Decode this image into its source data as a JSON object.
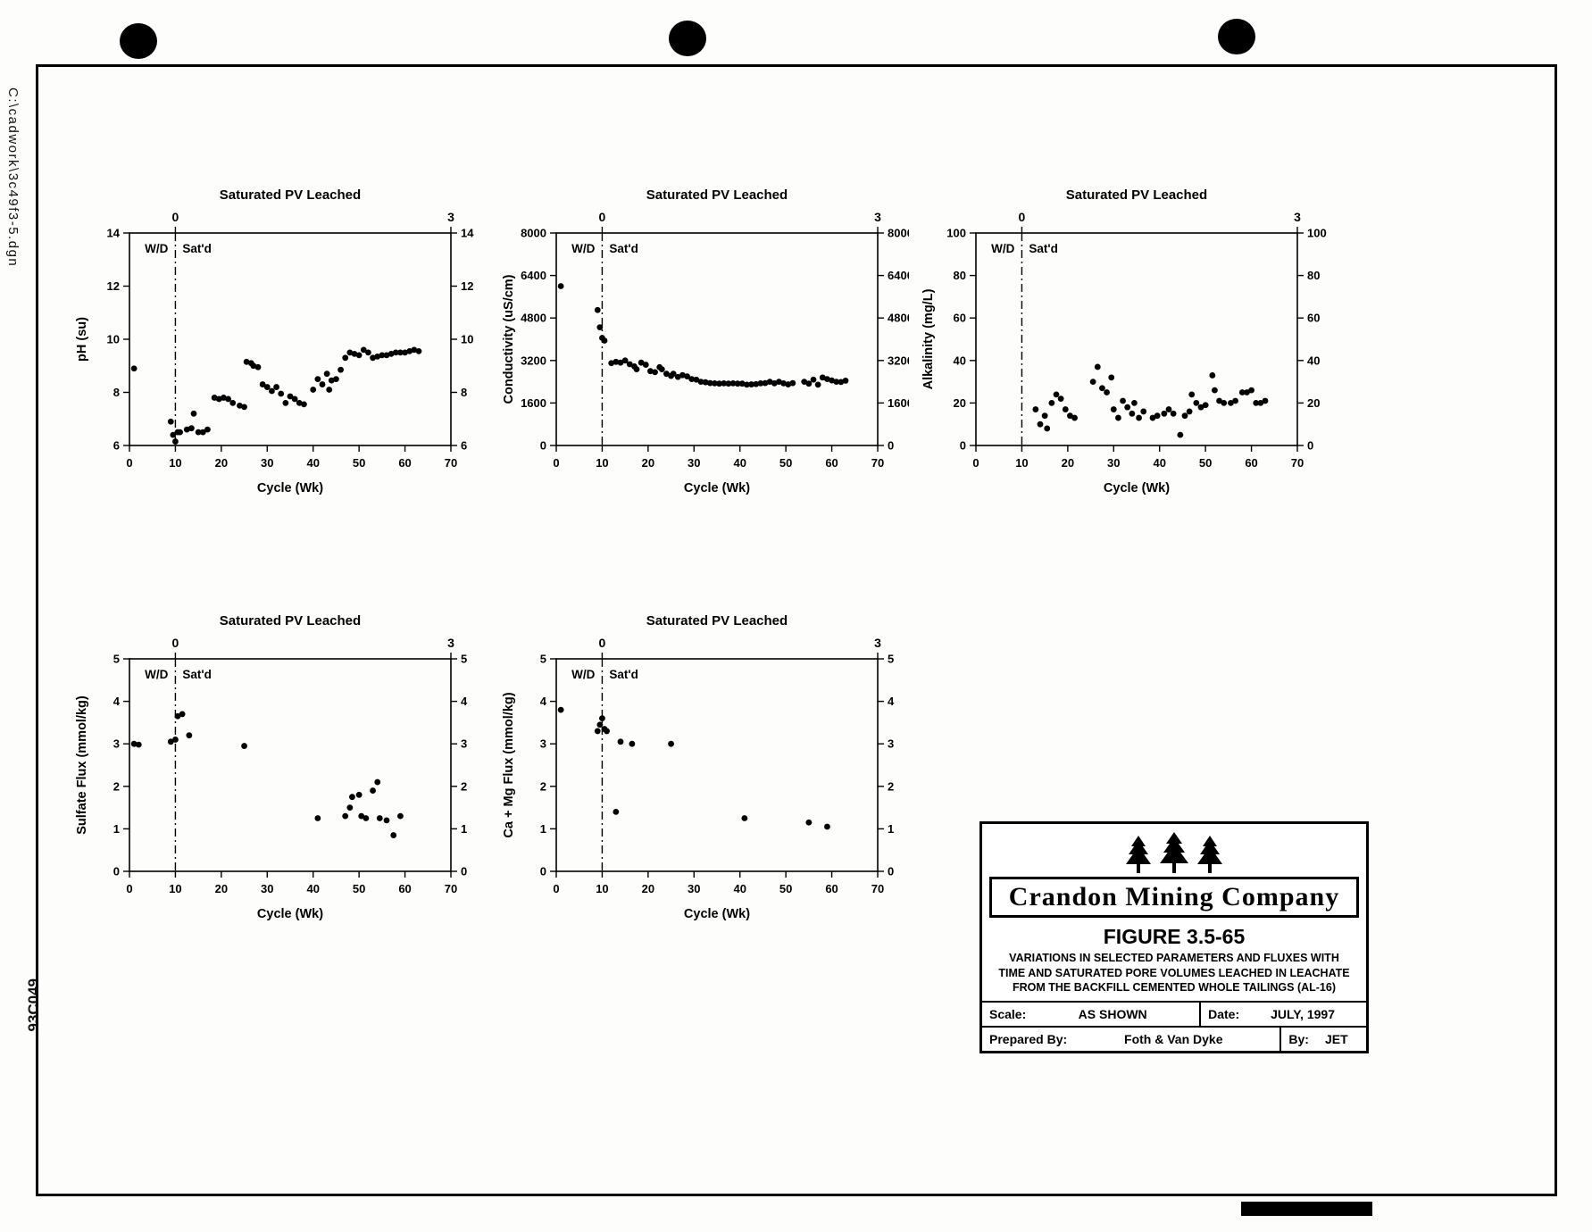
{
  "page": {
    "file_path_label": "C:\\cadwork\\3c49f3-5.dgn",
    "doc_number": "93C049"
  },
  "title_block": {
    "company": "Crandon Mining Company",
    "figure": "FIGURE 3.5-65",
    "caption_lines": [
      "VARIATIONS IN SELECTED PARAMETERS AND FLUXES WITH",
      "TIME AND SATURATED PORE VOLUMES LEACHED IN LEACHATE",
      "FROM THE BACKFILL CEMENTED WHOLE TAILINGS (AL-16)"
    ],
    "scale_label": "Scale:",
    "scale_value": "AS SHOWN",
    "date_label": "Date:",
    "date_value": "JULY, 1997",
    "prepared_label": "Prepared By:",
    "prepared_value": "Foth & Van Dyke",
    "by_label": "By:",
    "by_value": "JET"
  },
  "chart_data": [
    {
      "type": "scatter",
      "title": "Saturated PV Leached",
      "xlabel": "Cycle (Wk)",
      "ylabel": "pH (su)",
      "xlim": [
        0,
        70
      ],
      "ylim": [
        6,
        14
      ],
      "xticks": [
        0,
        10,
        20,
        30,
        40,
        50,
        60,
        70
      ],
      "yticks": [
        6,
        8,
        10,
        12,
        14
      ],
      "top_axis": {
        "ticks": [
          "0",
          "3"
        ],
        "tick_x": [
          10,
          70
        ]
      },
      "divider_x": 10,
      "region_labels": [
        "W/D",
        "Sat'd"
      ],
      "points": [
        [
          1,
          8.9
        ],
        [
          9,
          6.9
        ],
        [
          9.5,
          6.4
        ],
        [
          10,
          6.15
        ],
        [
          10.5,
          6.5
        ],
        [
          11,
          6.5
        ],
        [
          12.5,
          6.6
        ],
        [
          13.5,
          6.65
        ],
        [
          14,
          7.2
        ],
        [
          15,
          6.5
        ],
        [
          16,
          6.5
        ],
        [
          17,
          6.6
        ],
        [
          18.5,
          7.8
        ],
        [
          19.5,
          7.75
        ],
        [
          20.5,
          7.8
        ],
        [
          21.5,
          7.75
        ],
        [
          22.5,
          7.6
        ],
        [
          24,
          7.5
        ],
        [
          25,
          7.45
        ],
        [
          25.5,
          9.15
        ],
        [
          26.5,
          9.1
        ],
        [
          27,
          9.0
        ],
        [
          28,
          8.95
        ],
        [
          29,
          8.3
        ],
        [
          30,
          8.2
        ],
        [
          31,
          8.05
        ],
        [
          32,
          8.2
        ],
        [
          33,
          7.95
        ],
        [
          34,
          7.6
        ],
        [
          35,
          7.85
        ],
        [
          36,
          7.75
        ],
        [
          37,
          7.6
        ],
        [
          38,
          7.55
        ],
        [
          40,
          8.1
        ],
        [
          41,
          8.5
        ],
        [
          42,
          8.3
        ],
        [
          43,
          8.7
        ],
        [
          43.5,
          8.1
        ],
        [
          44,
          8.45
        ],
        [
          45,
          8.5
        ],
        [
          46,
          8.85
        ],
        [
          47,
          9.3
        ],
        [
          48,
          9.5
        ],
        [
          49,
          9.45
        ],
        [
          50,
          9.4
        ],
        [
          51,
          9.6
        ],
        [
          52,
          9.5
        ],
        [
          53,
          9.3
        ],
        [
          54,
          9.35
        ],
        [
          55,
          9.4
        ],
        [
          56,
          9.4
        ],
        [
          57,
          9.45
        ],
        [
          58,
          9.5
        ],
        [
          59,
          9.5
        ],
        [
          60,
          9.5
        ],
        [
          61,
          9.55
        ],
        [
          62,
          9.6
        ],
        [
          63,
          9.55
        ]
      ]
    },
    {
      "type": "scatter",
      "title": "Saturated PV Leached",
      "xlabel": "Cycle (Wk)",
      "ylabel": "Conductivity (uS/cm)",
      "xlim": [
        0,
        70
      ],
      "ylim": [
        0,
        8000
      ],
      "xticks": [
        0,
        10,
        20,
        30,
        40,
        50,
        60,
        70
      ],
      "yticks": [
        0,
        1600,
        3200,
        4800,
        6400,
        8000
      ],
      "top_axis": {
        "ticks": [
          "0",
          "3"
        ],
        "tick_x": [
          10,
          70
        ]
      },
      "divider_x": 10,
      "region_labels": [
        "W/D",
        "Sat'd"
      ],
      "points": [
        [
          1,
          6000
        ],
        [
          9,
          5100
        ],
        [
          9.5,
          4450
        ],
        [
          10,
          4050
        ],
        [
          10.5,
          3950
        ],
        [
          12,
          3100
        ],
        [
          13,
          3150
        ],
        [
          14,
          3120
        ],
        [
          15,
          3200
        ],
        [
          16,
          3060
        ],
        [
          17,
          2980
        ],
        [
          17.5,
          2870
        ],
        [
          18.5,
          3120
        ],
        [
          19.5,
          3040
        ],
        [
          20.5,
          2800
        ],
        [
          21.5,
          2760
        ],
        [
          22.5,
          2950
        ],
        [
          23,
          2870
        ],
        [
          24,
          2700
        ],
        [
          25,
          2620
        ],
        [
          25.5,
          2700
        ],
        [
          26.5,
          2580
        ],
        [
          27.5,
          2650
        ],
        [
          28.5,
          2600
        ],
        [
          29.5,
          2500
        ],
        [
          30.5,
          2480
        ],
        [
          31.5,
          2400
        ],
        [
          32.5,
          2380
        ],
        [
          33.5,
          2350
        ],
        [
          34.5,
          2340
        ],
        [
          35.5,
          2330
        ],
        [
          36.5,
          2340
        ],
        [
          37.5,
          2330
        ],
        [
          38.5,
          2340
        ],
        [
          39.5,
          2330
        ],
        [
          40.5,
          2330
        ],
        [
          41.5,
          2290
        ],
        [
          42.5,
          2300
        ],
        [
          43.5,
          2310
        ],
        [
          44.5,
          2340
        ],
        [
          45.5,
          2350
        ],
        [
          46.5,
          2400
        ],
        [
          47.5,
          2340
        ],
        [
          48.5,
          2400
        ],
        [
          49.5,
          2340
        ],
        [
          50.5,
          2300
        ],
        [
          51.5,
          2350
        ],
        [
          54,
          2400
        ],
        [
          55,
          2330
        ],
        [
          56,
          2480
        ],
        [
          57,
          2290
        ],
        [
          58,
          2560
        ],
        [
          59,
          2500
        ],
        [
          60,
          2450
        ],
        [
          61,
          2400
        ],
        [
          62,
          2390
        ],
        [
          63,
          2440
        ]
      ]
    },
    {
      "type": "scatter",
      "title": "Saturated PV Leached",
      "xlabel": "Cycle (Wk)",
      "ylabel": "Alkalinity (mg/L)",
      "xlim": [
        0,
        70
      ],
      "ylim": [
        0,
        100
      ],
      "xticks": [
        0,
        10,
        20,
        30,
        40,
        50,
        60,
        70
      ],
      "yticks": [
        0,
        20,
        40,
        60,
        80,
        100
      ],
      "top_axis": {
        "ticks": [
          "0",
          "3"
        ],
        "tick_x": [
          10,
          70
        ]
      },
      "divider_x": 10,
      "region_labels": [
        "W/D",
        "Sat'd"
      ],
      "points": [
        [
          13,
          17
        ],
        [
          14,
          10
        ],
        [
          15,
          14
        ],
        [
          15.5,
          8
        ],
        [
          16.5,
          20
        ],
        [
          17.5,
          24
        ],
        [
          18.5,
          22
        ],
        [
          19.5,
          17
        ],
        [
          20.5,
          14
        ],
        [
          21.5,
          13
        ],
        [
          25.5,
          30
        ],
        [
          26.5,
          37
        ],
        [
          27.5,
          27
        ],
        [
          28.5,
          25
        ],
        [
          29.5,
          32
        ],
        [
          30,
          17
        ],
        [
          31,
          13
        ],
        [
          32,
          21
        ],
        [
          33,
          18
        ],
        [
          34,
          15
        ],
        [
          34.5,
          20
        ],
        [
          35.5,
          13
        ],
        [
          36.5,
          16
        ],
        [
          38.5,
          13
        ],
        [
          39.5,
          14
        ],
        [
          41,
          15
        ],
        [
          42,
          17
        ],
        [
          43,
          15
        ],
        [
          44.5,
          5
        ],
        [
          45.5,
          14
        ],
        [
          46.5,
          16
        ],
        [
          47,
          24
        ],
        [
          48,
          20
        ],
        [
          49,
          18
        ],
        [
          50,
          19
        ],
        [
          51.5,
          33
        ],
        [
          52,
          26
        ],
        [
          53,
          21
        ],
        [
          54,
          20
        ],
        [
          55.5,
          20
        ],
        [
          56.5,
          21
        ],
        [
          58,
          25
        ],
        [
          59,
          25
        ],
        [
          60,
          26
        ],
        [
          61,
          20
        ],
        [
          62,
          20
        ],
        [
          63,
          21
        ]
      ]
    },
    {
      "type": "scatter",
      "title": "Saturated PV Leached",
      "xlabel": "Cycle (Wk)",
      "ylabel": "Sulfate Flux (mmol/kg)",
      "xlim": [
        0,
        70
      ],
      "ylim": [
        0,
        5
      ],
      "xticks": [
        0,
        10,
        20,
        30,
        40,
        50,
        60,
        70
      ],
      "yticks": [
        0,
        1,
        2,
        3,
        4,
        5
      ],
      "top_axis": {
        "ticks": [
          "0",
          "3"
        ],
        "tick_x": [
          10,
          70
        ]
      },
      "divider_x": 10,
      "region_labels": [
        "W/D",
        "Sat'd"
      ],
      "points": [
        [
          1,
          3.0
        ],
        [
          2,
          2.98
        ],
        [
          9,
          3.05
        ],
        [
          10,
          3.1
        ],
        [
          10.5,
          3.65
        ],
        [
          11.5,
          3.7
        ],
        [
          13,
          3.2
        ],
        [
          25,
          2.95
        ],
        [
          41,
          1.25
        ],
        [
          47,
          1.3
        ],
        [
          48,
          1.5
        ],
        [
          48.5,
          1.75
        ],
        [
          50,
          1.8
        ],
        [
          50.5,
          1.3
        ],
        [
          51.5,
          1.25
        ],
        [
          53,
          1.9
        ],
        [
          54,
          2.1
        ],
        [
          54.5,
          1.25
        ],
        [
          56,
          1.2
        ],
        [
          57.5,
          0.85
        ],
        [
          59,
          1.3
        ]
      ]
    },
    {
      "type": "scatter",
      "title": "Saturated PV Leached",
      "xlabel": "Cycle (Wk)",
      "ylabel": "Ca + Mg Flux (mmol/kg)",
      "xlim": [
        0,
        70
      ],
      "ylim": [
        0,
        5
      ],
      "xticks": [
        0,
        10,
        20,
        30,
        40,
        50,
        60,
        70
      ],
      "yticks": [
        0,
        1,
        2,
        3,
        4,
        5
      ],
      "top_axis": {
        "ticks": [
          "0",
          "3"
        ],
        "tick_x": [
          10,
          70
        ]
      },
      "divider_x": 10,
      "region_labels": [
        "W/D",
        "Sat'd"
      ],
      "points": [
        [
          1,
          3.8
        ],
        [
          9,
          3.3
        ],
        [
          9.5,
          3.45
        ],
        [
          10,
          3.6
        ],
        [
          10.5,
          3.35
        ],
        [
          11,
          3.3
        ],
        [
          13,
          1.4
        ],
        [
          14,
          3.05
        ],
        [
          16.5,
          3.0
        ],
        [
          25,
          3.0
        ],
        [
          41,
          1.25
        ],
        [
          55,
          1.15
        ],
        [
          59,
          1.05
        ]
      ]
    }
  ]
}
